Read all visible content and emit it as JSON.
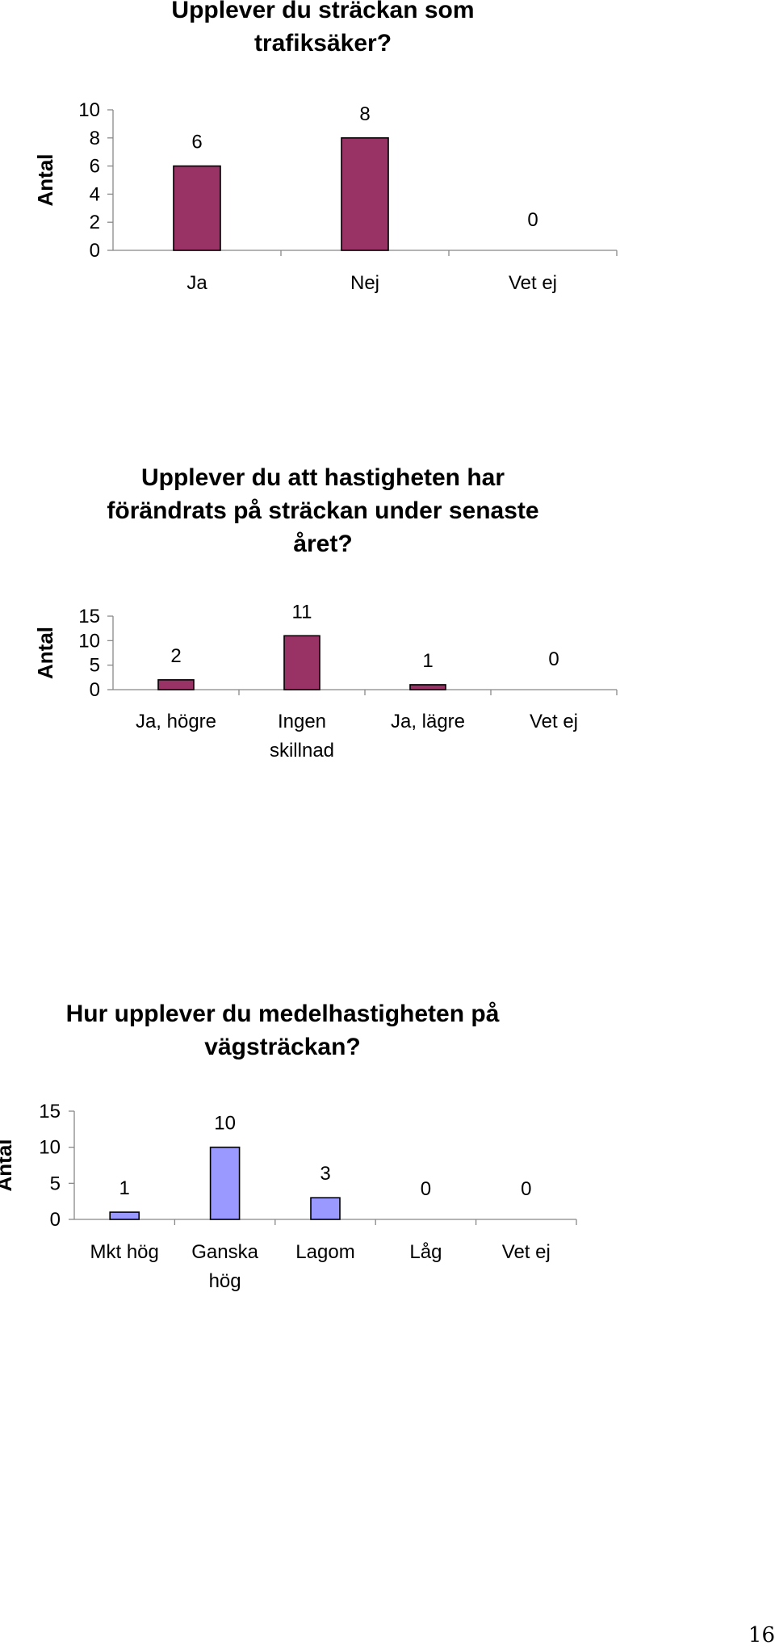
{
  "page": {
    "number": "16"
  },
  "chart_data": [
    {
      "type": "bar",
      "title": "Upplever du sträckan som\ntrafiksäker?",
      "ylabel": "Antal",
      "xlabel": "",
      "categories": [
        "Ja",
        "Nej",
        "Vet ej"
      ],
      "values": [
        6,
        8,
        0
      ],
      "data_labels": [
        "6",
        "8",
        "0"
      ],
      "yticks": [
        0,
        2,
        4,
        6,
        8,
        10
      ],
      "ylim": [
        0,
        10
      ],
      "grid": false,
      "legend": "none",
      "bar_color": "#993366"
    },
    {
      "type": "bar",
      "title": "Upplever du att hastigheten har\nförändrats på sträckan under senaste\nåret?",
      "ylabel": "Antal",
      "xlabel": "",
      "categories": [
        "Ja, högre",
        "Ingen skillnad",
        "Ja, lägre",
        "Vet ej"
      ],
      "values": [
        2,
        11,
        1,
        0
      ],
      "data_labels": [
        "2",
        "11",
        "1",
        "0"
      ],
      "yticks": [
        0,
        5,
        10,
        15
      ],
      "ylim": [
        0,
        15
      ],
      "grid": false,
      "legend": "none",
      "bar_color": "#993366"
    },
    {
      "type": "bar",
      "title": "Hur upplever du medelhastigheten på\nvägsträckan?",
      "ylabel": "Antal",
      "xlabel": "",
      "categories": [
        "Mkt hög",
        "Ganska hög",
        "Lagom",
        "Låg",
        "Vet ej"
      ],
      "values": [
        1,
        10,
        3,
        0,
        0
      ],
      "data_labels": [
        "1",
        "10",
        "3",
        "0",
        "0"
      ],
      "yticks": [
        0,
        5,
        10,
        15
      ],
      "ylim": [
        0,
        15
      ],
      "grid": false,
      "legend": "none",
      "bar_color": "#9999ff"
    }
  ]
}
